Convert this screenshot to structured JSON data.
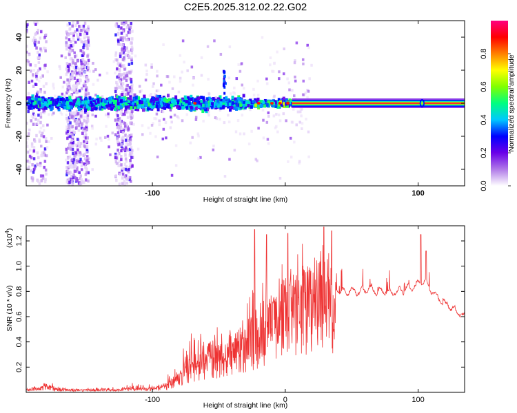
{
  "title": "C2E5.2025.312.02.22.G02",
  "chart_data": [
    {
      "type": "heatmap",
      "name": "spectrogram",
      "xlabel": "Height of straight line (km)",
      "ylabel": "Frequency (Hz)",
      "xlim": [
        -195,
        135
      ],
      "ylim": [
        -50,
        50
      ],
      "x_ticks": [
        -100,
        0,
        100
      ],
      "x_tick_labels": [
        "-100",
        "",
        "100"
      ],
      "y_ticks": [
        -40,
        -20,
        0,
        20,
        40
      ],
      "y_tick_labels": [
        "-40",
        "-20",
        "0",
        "20",
        "40"
      ],
      "description_regions": {
        "broadband_bursts_x": [
          [
            -165,
            -148
          ],
          [
            -128,
            -115
          ],
          [
            -195,
            -180
          ]
        ],
        "ridge_start_x": 5,
        "ridge_frequency": 0,
        "secondary_peak_x": 103,
        "spike_x": -46,
        "spike_freq": 18
      },
      "colorbar": {
        "label": "Normalized spectral amplitude",
        "ticks": [
          0.0,
          0.2,
          0.4,
          0.6,
          0.8
        ],
        "tick_labels": [
          "0.0",
          "0.2",
          "0.4",
          "0.6",
          "0.8"
        ],
        "range": [
          0,
          1
        ],
        "colormap": [
          "#ffffff",
          "#b07ae8",
          "#6a00e8",
          "#0000ff",
          "#00c8ff",
          "#00ff80",
          "#80ff00",
          "#ffff00",
          "#ff8000",
          "#ff0000",
          "#ff0080"
        ]
      }
    },
    {
      "type": "line",
      "name": "snr",
      "xlabel": "Height of straight line (km)",
      "ylabel": "SNR (10 * v/v)",
      "y_scale_label": "(x10",
      "y_scale_exp": "4",
      "y_scale_close": ")",
      "xlim": [
        -195,
        135
      ],
      "ylim": [
        0,
        1.32
      ],
      "x_ticks": [
        -100,
        0,
        100
      ],
      "x_tick_labels": [
        "-100",
        "0",
        "100"
      ],
      "y_ticks": [
        0.2,
        0.4,
        0.6,
        0.8,
        1.0,
        1.2
      ],
      "y_tick_labels": [
        "0.2",
        "0.4",
        "0.6",
        "0.8",
        "1.0",
        "1.2"
      ],
      "color": "#ee3333",
      "envelope": {
        "x": [
          -195,
          -185,
          -180,
          -175,
          -165,
          -150,
          -130,
          -115,
          -100,
          -90,
          -80,
          -75,
          -65,
          -55,
          -45,
          -35,
          -28,
          -22,
          -15,
          -8,
          0,
          10,
          20,
          30,
          38,
          45,
          55,
          65,
          75,
          85,
          95,
          100,
          105,
          110,
          120,
          130,
          135
        ],
        "base": [
          0.02,
          0.03,
          0.05,
          0.03,
          0.02,
          0.02,
          0.02,
          0.03,
          0.03,
          0.05,
          0.12,
          0.2,
          0.25,
          0.3,
          0.32,
          0.38,
          0.45,
          0.52,
          0.6,
          0.68,
          0.72,
          0.78,
          0.85,
          0.88,
          0.82,
          0.8,
          0.8,
          0.82,
          0.8,
          0.8,
          0.83,
          0.86,
          0.88,
          0.8,
          0.7,
          0.64,
          0.6
        ],
        "spike": [
          0.02,
          0.04,
          0.1,
          0.05,
          0.03,
          0.03,
          0.04,
          0.06,
          0.06,
          0.1,
          0.25,
          0.35,
          0.3,
          0.28,
          0.3,
          0.35,
          0.5,
          0.7,
          0.55,
          0.4,
          0.35,
          0.35,
          0.4,
          0.35,
          0.12,
          0.08,
          0.08,
          0.08,
          0.07,
          0.07,
          0.08,
          0.25,
          0.08,
          0.06,
          0.05,
          0.04,
          0.04
        ]
      },
      "peaks": [
        {
          "x": -23,
          "y": 1.29
        },
        {
          "x": -14,
          "y": 1.25
        },
        {
          "x": 2,
          "y": 1.26
        },
        {
          "x": 29,
          "y": 1.31
        },
        {
          "x": 35,
          "y": 1.28
        },
        {
          "x": 102,
          "y": 1.25
        },
        {
          "x": 106,
          "y": 1.12
        }
      ]
    }
  ]
}
